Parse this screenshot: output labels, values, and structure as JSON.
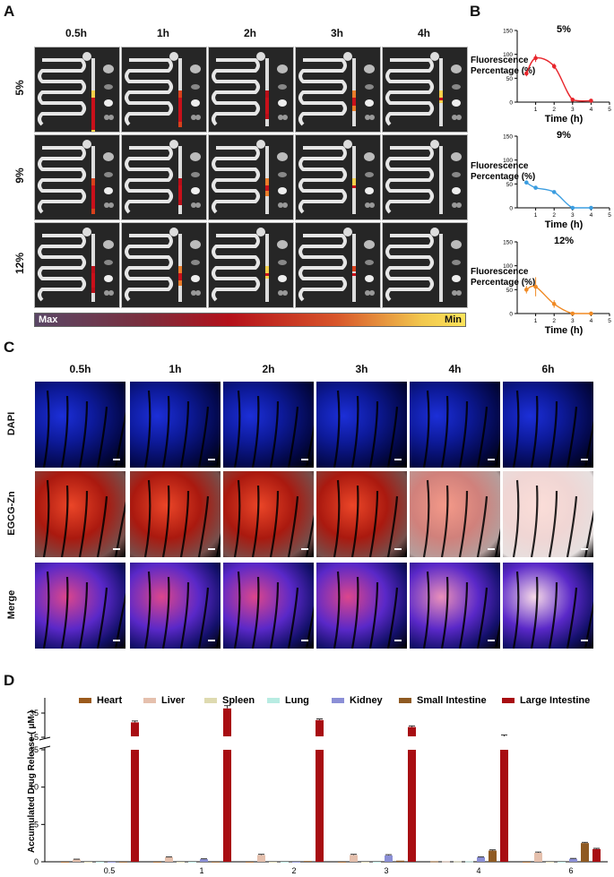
{
  "panelA": {
    "letter": "A",
    "times": [
      "0.5h",
      "1h",
      "2h",
      "3h",
      "4h"
    ],
    "rows": [
      "5%",
      "9%",
      "12%"
    ],
    "gradient_max": "Max",
    "gradient_min": "Min"
  },
  "panelB": {
    "letter": "B"
  },
  "panelC": {
    "letter": "C",
    "times": [
      "0.5h",
      "1h",
      "2h",
      "3h",
      "4h",
      "6h"
    ],
    "rows": [
      "DAPI",
      "EGCG-Zn",
      "Merge"
    ]
  },
  "panelD": {
    "letter": "D"
  },
  "chart_data": [
    {
      "type": "line",
      "title": "5%",
      "xlabel": "Time (h)",
      "ylabel": "Fluorescence Percentage (%)",
      "xlim": [
        0,
        5
      ],
      "ylim": [
        0,
        150
      ],
      "xticks": [
        "1",
        "2",
        "3",
        "4",
        "5"
      ],
      "yticks": [
        "0",
        "50",
        "100",
        "150"
      ],
      "color": "#e8262c",
      "points": [
        {
          "x": 0.5,
          "y": 60
        },
        {
          "x": 1,
          "y": 92
        },
        {
          "x": 2,
          "y": 75
        },
        {
          "x": 3,
          "y": 5
        },
        {
          "x": 4,
          "y": 3
        }
      ],
      "errors": [
        6,
        8,
        6,
        2,
        2
      ]
    },
    {
      "type": "line",
      "title": "9%",
      "xlabel": "Time (h)",
      "ylabel": "Fluorescence Percentage (%)",
      "xlim": [
        0,
        5
      ],
      "ylim": [
        0,
        150
      ],
      "xticks": [
        "1",
        "2",
        "3",
        "4",
        "5"
      ],
      "yticks": [
        "0",
        "50",
        "100",
        "150"
      ],
      "color": "#3b9de0",
      "points": [
        {
          "x": 0.5,
          "y": 53
        },
        {
          "x": 1,
          "y": 42
        },
        {
          "x": 2,
          "y": 33
        },
        {
          "x": 3,
          "y": 0
        },
        {
          "x": 4,
          "y": 0
        }
      ],
      "errors": [
        3,
        3,
        2,
        0,
        0
      ]
    },
    {
      "type": "line",
      "title": "12%",
      "xlabel": "Time (h)",
      "ylabel": "Fluorescence Percentage (%)",
      "xlim": [
        0,
        5
      ],
      "ylim": [
        0,
        150
      ],
      "xticks": [
        "1",
        "2",
        "3",
        "4",
        "5"
      ],
      "yticks": [
        "0",
        "50",
        "100",
        "150"
      ],
      "color": "#f08a24",
      "points": [
        {
          "x": 0.5,
          "y": 50
        },
        {
          "x": 1,
          "y": 56
        },
        {
          "x": 2,
          "y": 20
        },
        {
          "x": 3,
          "y": 0
        },
        {
          "x": 4,
          "y": 0
        }
      ],
      "errors": [
        8,
        20,
        8,
        0,
        0
      ]
    },
    {
      "type": "bar",
      "xlabel": "Hours After Rectal Administration",
      "ylabel": "Accumulated Drug Release ( μM )",
      "categories": [
        "0.5",
        "1",
        "2",
        "3",
        "4",
        "6"
      ],
      "axis_break": [
        15,
        25
      ],
      "yticks": [
        "0",
        "5",
        "10",
        "15",
        "15",
        "35"
      ],
      "series": [
        {
          "name": "Heart",
          "color": "#9b5a1c",
          "values": [
            0.0,
            0.0,
            0.0,
            0.0,
            0.05,
            0.0
          ],
          "errors": [
            0,
            0,
            0,
            0,
            0,
            0
          ]
        },
        {
          "name": "Liver",
          "color": "#e5c0ad",
          "values": [
            0.3,
            0.6,
            0.9,
            0.9,
            0.05,
            1.2
          ],
          "errors": [
            0.05,
            0.05,
            0.1,
            0.1,
            0,
            0.1
          ]
        },
        {
          "name": "Spleen",
          "color": "#dedab0",
          "values": [
            0.0,
            0.0,
            0.0,
            0.0,
            0.05,
            0.0
          ],
          "errors": [
            0,
            0,
            0,
            0,
            0,
            0
          ]
        },
        {
          "name": "Lung",
          "color": "#b8ece2",
          "values": [
            0.0,
            0.0,
            0.0,
            0.0,
            0.05,
            0.0
          ],
          "errors": [
            0,
            0,
            0,
            0,
            0,
            0
          ]
        },
        {
          "name": "Kidney",
          "color": "#8b8fd6",
          "values": [
            0.0,
            0.35,
            0.0,
            0.85,
            0.6,
            0.4
          ],
          "errors": [
            0,
            0.05,
            0,
            0.1,
            0.05,
            0.05
          ]
        },
        {
          "name": "Small Intestine",
          "color": "#8f5a22",
          "values": [
            0.0,
            0.0,
            0.1,
            0.15,
            1.5,
            2.5
          ],
          "errors": [
            0,
            0,
            0,
            0,
            0.1,
            0.1
          ]
        },
        {
          "name": "Large Intestine",
          "color": "#a80d12",
          "values": [
            31.0,
            37.0,
            32.0,
            29.0,
            25.0,
            1.7
          ],
          "errors": [
            0.6,
            1.2,
            0.5,
            0.5,
            0.6,
            0.1
          ]
        }
      ]
    }
  ]
}
